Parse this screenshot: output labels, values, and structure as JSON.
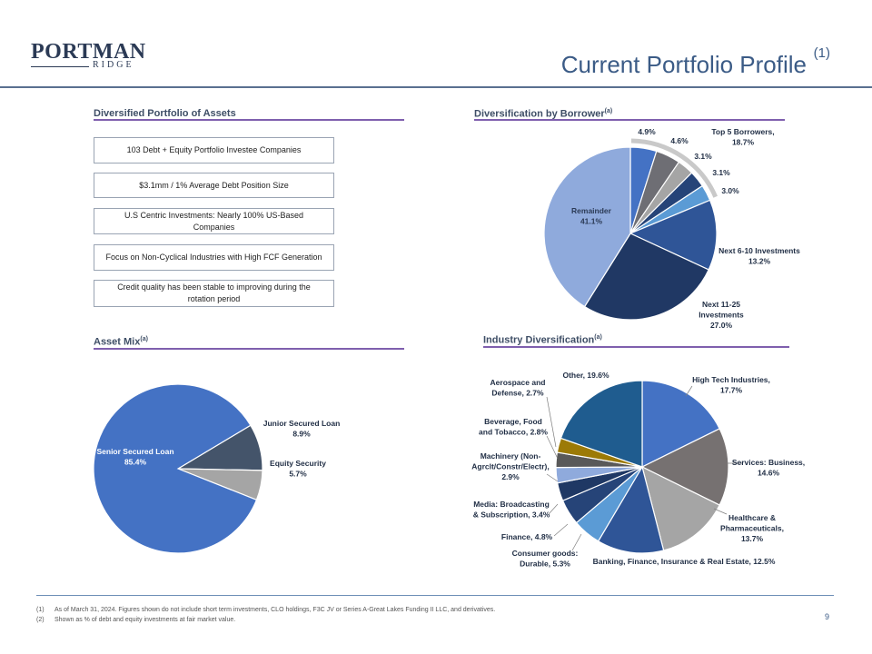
{
  "header": {
    "logo_main": "PORTMAN",
    "logo_sub": "RIDGE",
    "title": "Current Portfolio Profile",
    "title_sup": "(1)"
  },
  "sections": {
    "diversified": "Diversified Portfolio of Assets",
    "borrower": "Diversification by Borrower",
    "borrower_sup": "(a)",
    "asset_mix": "Asset Mix",
    "asset_mix_sup": "(a)",
    "industry": "Industry Diversification",
    "industry_sup": "(a)"
  },
  "features": [
    "103 Debt + Equity Portfolio Investee Companies",
    "$3.1mm / 1% Average Debt Position Size",
    "U.S Centric Investments: Nearly 100% US-Based Companies",
    "Focus on Non-Cyclical Industries with High FCF Generation",
    "Credit quality has been stable to improving during the rotation period"
  ],
  "colors": {
    "accent_rule": "#7f5fae",
    "title_blue": "#3b5b86"
  },
  "chart_data": [
    {
      "type": "pie",
      "name": "borrower",
      "categories": [
        "4.9%",
        "4.6%",
        "3.1%",
        "3.1%",
        "3.0%",
        "Next 6-10 Investments",
        "Next 11-25 Investments",
        "Remainder"
      ],
      "values": [
        4.9,
        4.6,
        3.1,
        3.1,
        3.0,
        13.2,
        27.0,
        41.1
      ],
      "colors": [
        "#4472c4",
        "#6e6e74",
        "#a5a5a5",
        "#264478",
        "#5b9bd5",
        "#2f5597",
        "#203864",
        "#8faadc"
      ],
      "labels": [
        {
          "text": [
            "4.9%"
          ]
        },
        {
          "text": [
            "4.6%"
          ]
        },
        {
          "text": [
            "3.1%"
          ]
        },
        {
          "text": [
            "3.1%"
          ]
        },
        {
          "text": [
            "3.0%"
          ]
        },
        {
          "text": [
            "Next 6-10 Investments",
            "13.2%"
          ]
        },
        {
          "text": [
            "Next 11-25",
            "Investments",
            "27.0%"
          ]
        },
        {
          "text": [
            "Remainder",
            "41.1%"
          ]
        }
      ],
      "group_label": [
        "Top 5 Borrowers,",
        "18.7%"
      ],
      "group_color": "#c9c9c9"
    },
    {
      "type": "pie",
      "name": "asset_mix",
      "categories": [
        "Senior Secured Loan",
        "Junior Secured Loan",
        "Equity Security"
      ],
      "values": [
        85.4,
        8.9,
        5.7
      ],
      "colors": [
        "#4472c4",
        "#44546a",
        "#a5a5a5"
      ],
      "labels": [
        {
          "text": [
            "Senior Secured Loan",
            "85.4%"
          ]
        },
        {
          "text": [
            "Junior Secured Loan",
            "8.9%"
          ]
        },
        {
          "text": [
            "Equity Security",
            "5.7%"
          ]
        }
      ]
    },
    {
      "type": "pie",
      "name": "industry",
      "categories": [
        "High Tech Industries",
        "Services: Business",
        "Healthcare & Pharmaceuticals",
        "Banking, Finance, Insurance & Real Estate",
        "Consumer goods: Durable",
        "Finance",
        "Media: Broadcasting & Subscription",
        "Machinery (Non-Agrclt/Constr/Electr)",
        "Beverage, Food and Tobacco",
        "Aerospace and Defense",
        "Other"
      ],
      "values": [
        17.7,
        14.6,
        13.7,
        12.5,
        5.3,
        4.8,
        3.4,
        2.9,
        2.8,
        2.7,
        19.6
      ],
      "colors": [
        "#4472c4",
        "#767171",
        "#a5a5a5",
        "#2f5597",
        "#5b9bd5",
        "#264478",
        "#1f3864",
        "#8faadc",
        "#595959",
        "#9c7a07",
        "#1f5c8f"
      ],
      "labels": [
        {
          "text": [
            "High Tech Industries,",
            "17.7%"
          ]
        },
        {
          "text": [
            "Services: Business,",
            "14.6%"
          ]
        },
        {
          "text": [
            "Healthcare &",
            "Pharmaceuticals,",
            "13.7%"
          ]
        },
        {
          "text": [
            "Banking, Finance, Insurance & Real Estate, 12.5%"
          ]
        },
        {
          "text": [
            "Consumer goods:",
            "Durable, 5.3%"
          ]
        },
        {
          "text": [
            "Finance, 4.8%"
          ]
        },
        {
          "text": [
            "Media: Broadcasting",
            "& Subscription, 3.4%"
          ]
        },
        {
          "text": [
            "Machinery (Non-",
            "Agrclt/Constr/Electr),",
            "2.9%"
          ]
        },
        {
          "text": [
            "Beverage, Food",
            "and Tobacco, 2.8%"
          ]
        },
        {
          "text": [
            "Aerospace and",
            "Defense, 2.7%"
          ]
        },
        {
          "text": [
            "Other, 19.6%"
          ]
        }
      ]
    }
  ],
  "footer": {
    "notes": [
      {
        "num": "(1)",
        "text": "As of March 31, 2024. Figures shown do not include short term investments, CLO holdings, F3C JV or Series A-Great Lakes Funding II LLC, and derivatives."
      },
      {
        "num": "(2)",
        "text": "Shown as % of debt and equity investments at fair market value."
      }
    ],
    "page": "9"
  }
}
